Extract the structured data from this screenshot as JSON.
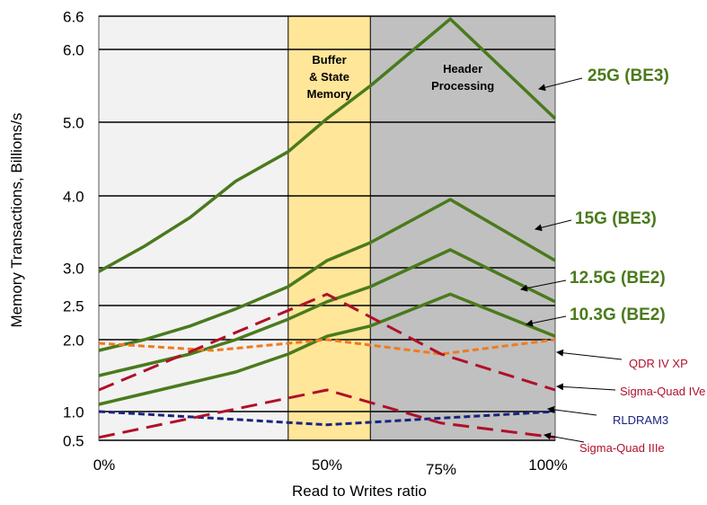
{
  "chart_data": {
    "type": "line",
    "xlabel": "Read to Writes ratio",
    "ylabel": "Memory Transactions, Billions/s",
    "x_ticks": [
      {
        "label": "0%",
        "value": 0
      },
      {
        "label": "50%",
        "value": 50
      },
      {
        "label": "75%",
        "value": 75
      },
      {
        "label": "100%",
        "value": 100
      }
    ],
    "y_ticks": [
      {
        "label": "6.6",
        "value": 6.6
      },
      {
        "label": "6.0",
        "value": 6.0
      },
      {
        "label": "5.0",
        "value": 5.0
      },
      {
        "label": "4.0",
        "value": 4.0
      },
      {
        "label": "3.0",
        "value": 3.0
      },
      {
        "label": "2.5",
        "value": 2.5
      },
      {
        "label": "2.0",
        "value": 2.0
      },
      {
        "label": "1.0",
        "value": 1.0
      },
      {
        "label": "0.5",
        "value": 0.5
      }
    ],
    "xlim": [
      0,
      100
    ],
    "ylim": [
      0.5,
      6.6
    ],
    "regions": [
      {
        "label_lines": [],
        "x_start": 0,
        "x_end": 41.5,
        "color": "#f2f2f2"
      },
      {
        "label_lines": [
          "Buffer",
          "& State",
          "Memory"
        ],
        "x_start": 41.5,
        "x_end": 59.5,
        "color": "#ffe699"
      },
      {
        "label_lines": [
          "Header",
          "Processing"
        ],
        "x_start": 59.5,
        "x_end": 100,
        "color": "#c0c0c0"
      }
    ],
    "series": [
      {
        "name": "25G (BE3)",
        "color": "#4a7a1c",
        "style": "solid",
        "x": [
          0,
          10,
          20,
          30,
          41.5,
          50,
          59.5,
          77,
          100
        ],
        "y": [
          2.95,
          3.3,
          3.7,
          4.2,
          4.6,
          5.05,
          5.5,
          6.55,
          5.05
        ]
      },
      {
        "name": "15G (BE3)",
        "color": "#4a7a1c",
        "style": "solid",
        "x": [
          0,
          10,
          20,
          30,
          41.5,
          50,
          59.5,
          77,
          100
        ],
        "y": [
          1.85,
          2.0,
          2.2,
          2.45,
          2.75,
          3.1,
          3.35,
          3.95,
          3.1
        ]
      },
      {
        "name": "12.5G (BE2)",
        "color": "#4a7a1c",
        "style": "solid",
        "x": [
          0,
          10,
          20,
          30,
          41.5,
          50,
          59.5,
          77,
          100
        ],
        "y": [
          1.5,
          1.65,
          1.8,
          2.0,
          2.3,
          2.55,
          2.75,
          3.25,
          2.55
        ]
      },
      {
        "name": "10.3G (BE2)",
        "color": "#4a7a1c",
        "style": "solid",
        "x": [
          0,
          10,
          20,
          30,
          41.5,
          50,
          59.5,
          77,
          100
        ],
        "y": [
          1.1,
          1.25,
          1.4,
          1.55,
          1.8,
          2.05,
          2.2,
          2.65,
          2.05
        ]
      },
      {
        "name": "QDR IV XP",
        "color": "#f07a1e",
        "style": "dashed",
        "x": [
          0,
          25,
          50,
          75,
          100
        ],
        "y": [
          1.95,
          1.85,
          2.0,
          1.8,
          2.0
        ]
      },
      {
        "name": "Sigma-Quad IVe",
        "color": "#b0102a",
        "style": "longdash",
        "x": [
          0,
          50,
          75,
          100
        ],
        "y": [
          1.3,
          2.65,
          1.8,
          1.3
        ]
      },
      {
        "name": "RLDRAM3",
        "color": "#1a237e",
        "style": "dashed",
        "x": [
          0,
          50,
          100
        ],
        "y": [
          1.0,
          0.77,
          1.0
        ]
      },
      {
        "name": "Sigma-Quad IIIe",
        "color": "#b0102a",
        "style": "longdash",
        "x": [
          0,
          50,
          75,
          100
        ],
        "y": [
          0.55,
          1.3,
          0.8,
          0.55
        ]
      }
    ],
    "grid": true
  }
}
